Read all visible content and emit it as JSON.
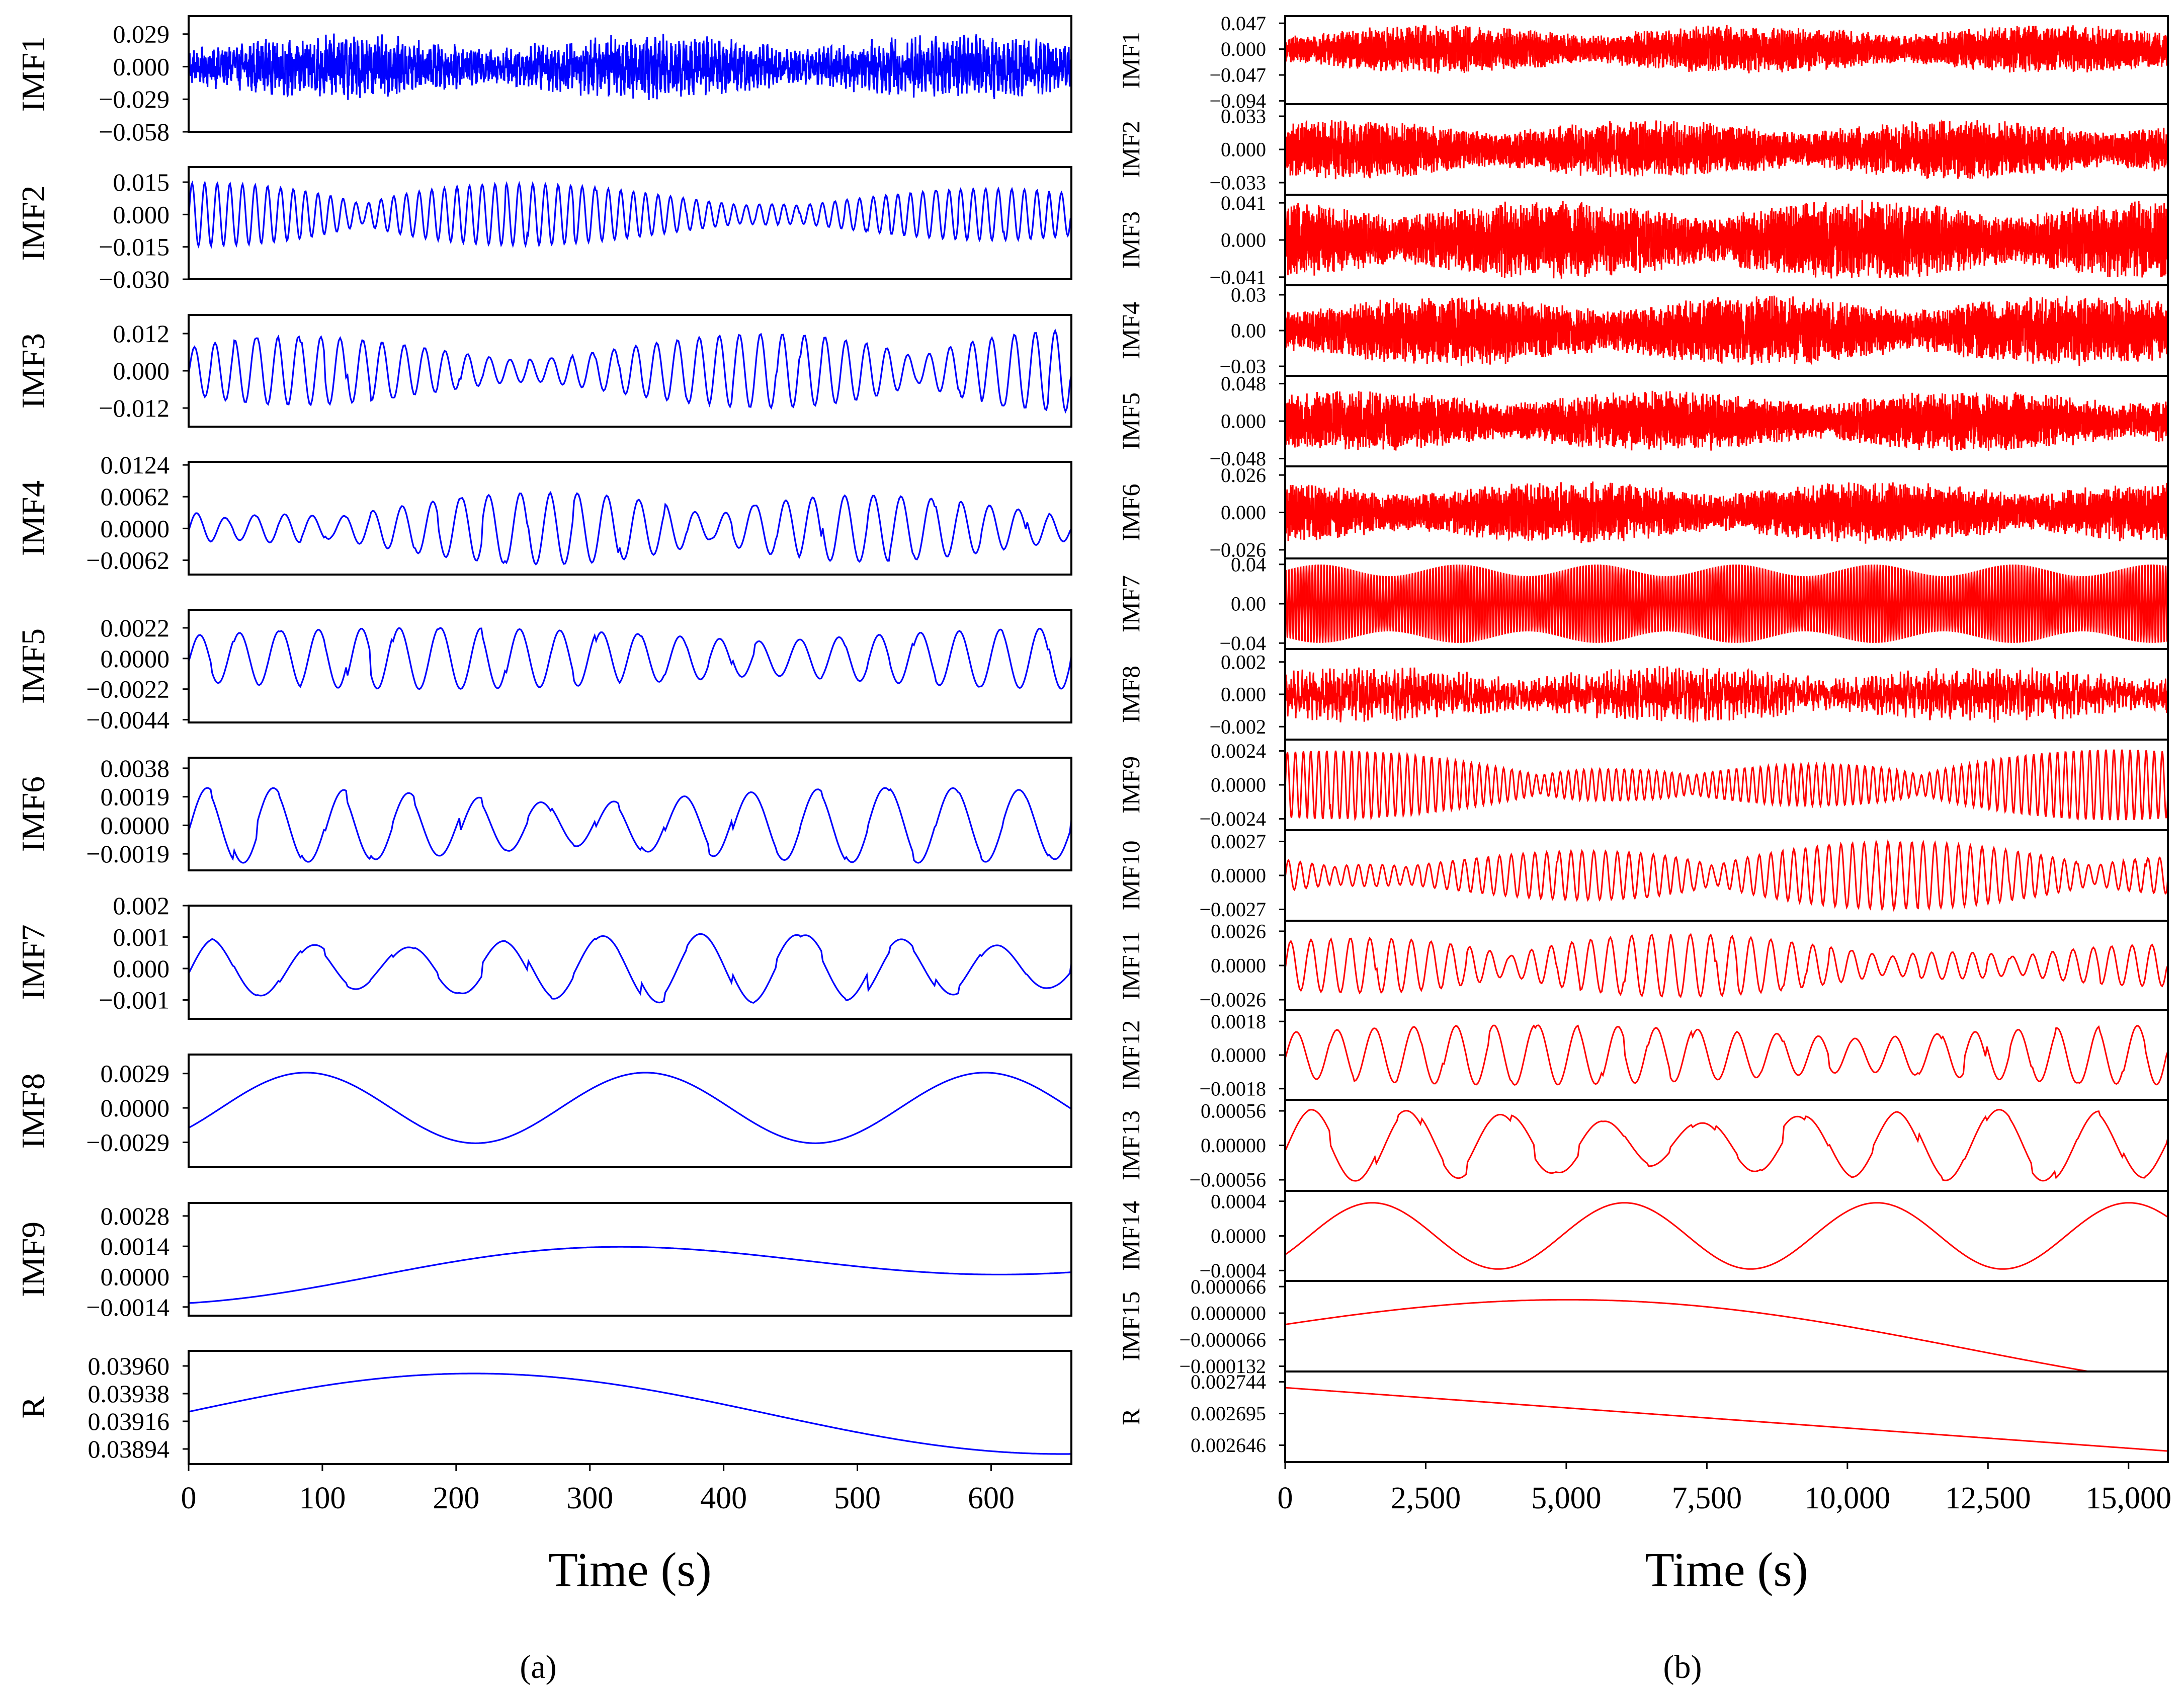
{
  "chart_data": [
    {
      "type": "line",
      "caption": "(a)",
      "caption_letter": "a",
      "color": "#0000ff",
      "xlabel": "Time (s)",
      "xlim": [
        0,
        660
      ],
      "xticks": [
        "0",
        "100",
        "200",
        "300",
        "400",
        "500",
        "600"
      ],
      "xtick_values": [
        0,
        100,
        200,
        300,
        400,
        500,
        600
      ],
      "panels": [
        {
          "label": "IMF1",
          "ylim": [
            -0.058,
            0.045
          ],
          "ticks": [
            0.029,
            0.0,
            -0.029,
            -0.058
          ],
          "tick_labels": [
            "0.029",
            "0.000",
            "−0.029",
            "−0.058"
          ],
          "amplitude": 0.03,
          "periods": 220,
          "style": "noise"
        },
        {
          "label": "IMF2",
          "ylim": [
            -0.03,
            0.022
          ],
          "ticks": [
            0.015,
            0.0,
            -0.015,
            -0.03
          ],
          "tick_labels": [
            "0.015",
            "0.000",
            "−0.015",
            "−0.030"
          ],
          "amplitude": 0.016,
          "periods": 70,
          "style": "burst"
        },
        {
          "label": "IMF3",
          "ylim": [
            -0.018,
            0.018
          ],
          "ticks": [
            0.012,
            0.0,
            -0.012
          ],
          "tick_labels": [
            "0.012",
            "0.000",
            "−0.012"
          ],
          "amplitude": 0.014,
          "periods": 42,
          "style": "burst"
        },
        {
          "label": "IMF4",
          "ylim": [
            -0.009,
            0.013
          ],
          "ticks": [
            0.0124,
            0.0062,
            0.0,
            -0.0062
          ],
          "tick_labels": [
            "0.0124",
            "0.0062",
            "0.0000",
            "−0.0062"
          ],
          "amplitude": 0.0075,
          "periods": 30,
          "style": "burst"
        },
        {
          "label": "IMF5",
          "ylim": [
            -0.0046,
            0.0035
          ],
          "ticks": [
            0.0022,
            0.0,
            -0.0022,
            -0.0044
          ],
          "tick_labels": [
            "0.0022",
            "0.0000",
            "−0.0022",
            "−0.0044"
          ],
          "amplitude": 0.0022,
          "periods": 22,
          "style": "wave"
        },
        {
          "label": "IMF6",
          "ylim": [
            -0.003,
            0.0045
          ],
          "ticks": [
            0.0038,
            0.0019,
            0.0,
            -0.0019
          ],
          "tick_labels": [
            "0.0038",
            "0.0019",
            "0.0000",
            "−0.0019"
          ],
          "amplitude": 0.0025,
          "periods": 13,
          "style": "wave"
        },
        {
          "label": "IMF7",
          "ylim": [
            -0.0016,
            0.002
          ],
          "ticks": [
            0.002,
            0.001,
            0.0,
            -0.001
          ],
          "tick_labels": [
            "0.002",
            "0.001",
            "0.000",
            "−0.001"
          ],
          "amplitude": 0.0011,
          "periods": 9,
          "style": "wave"
        },
        {
          "label": "IMF8",
          "ylim": [
            -0.005,
            0.0045
          ],
          "ticks": [
            0.0029,
            0.0,
            -0.0029
          ],
          "tick_labels": [
            "0.0029",
            "0.0000",
            "−0.0029"
          ],
          "amplitude": 0.0035,
          "periods": 2.6,
          "style": "slow"
        },
        {
          "label": "IMF9",
          "ylim": [
            -0.0018,
            0.0034
          ],
          "ticks": [
            0.0028,
            0.0014,
            0.0,
            -0.0014
          ],
          "tick_labels": [
            "0.0028",
            "0.0014",
            "0.0000",
            "−0.0014"
          ],
          "amplitude": 0.002,
          "periods": 1.1,
          "style": "trend"
        },
        {
          "label": "R",
          "ylim": [
            0.03882,
            0.03972
          ],
          "ticks": [
            0.0396,
            0.03938,
            0.03916,
            0.03894
          ],
          "tick_labels": [
            "0.03960",
            "0.03938",
            "0.03916",
            "0.03894"
          ],
          "amplitude": 0.0003,
          "periods": 0.8,
          "style": "residue"
        }
      ]
    },
    {
      "type": "line",
      "caption": "(b)",
      "caption_letter": "b",
      "color": "#ff0000",
      "xlabel": "Time (s)",
      "xlim": [
        0,
        15700
      ],
      "xticks": [
        "0",
        "2,500",
        "5,000",
        "7,500",
        "10,000",
        "12,500",
        "15,000"
      ],
      "xtick_values": [
        0,
        2500,
        5000,
        7500,
        10000,
        12500,
        15000
      ],
      "panels": [
        {
          "label": "IMF1",
          "ylim": [
            -0.1,
            0.06
          ],
          "ticks": [
            0.047,
            0.0,
            -0.047,
            -0.094
          ],
          "tick_labels": [
            "0.047",
            "0.000",
            "−0.047",
            "−0.094"
          ],
          "amplitude": 0.045,
          "periods": 900,
          "style": "noise"
        },
        {
          "label": "IMF2",
          "ylim": [
            -0.045,
            0.045
          ],
          "ticks": [
            0.033,
            0.0,
            -0.033
          ],
          "tick_labels": [
            "0.033",
            "0.000",
            "−0.033"
          ],
          "amplitude": 0.03,
          "periods": 800,
          "style": "noise"
        },
        {
          "label": "IMF3",
          "ylim": [
            -0.05,
            0.05
          ],
          "ticks": [
            0.041,
            0.0,
            -0.041
          ],
          "tick_labels": [
            "0.041",
            "0.000",
            "−0.041"
          ],
          "amplitude": 0.045,
          "periods": 900,
          "style": "noise"
        },
        {
          "label": "IMF4",
          "ylim": [
            -0.038,
            0.038
          ],
          "ticks": [
            0.03,
            0.0,
            -0.03
          ],
          "tick_labels": [
            "0.03",
            "0.00",
            "−0.03"
          ],
          "amplitude": 0.03,
          "periods": 800,
          "style": "noise"
        },
        {
          "label": "IMF5",
          "ylim": [
            -0.058,
            0.058
          ],
          "ticks": [
            0.048,
            0.0,
            -0.048
          ],
          "tick_labels": [
            "0.048",
            "0.000",
            "−0.048"
          ],
          "amplitude": 0.04,
          "periods": 700,
          "style": "noise"
        },
        {
          "label": "IMF6",
          "ylim": [
            -0.032,
            0.032
          ],
          "ticks": [
            0.026,
            0.0,
            -0.026
          ],
          "tick_labels": [
            "0.026",
            "0.000",
            "−0.026"
          ],
          "amplitude": 0.022,
          "periods": 500,
          "style": "noise"
        },
        {
          "label": "IMF7",
          "ylim": [
            -0.046,
            0.046
          ],
          "ticks": [
            0.04,
            0.0,
            -0.04
          ],
          "tick_labels": [
            "0.04",
            "0.00",
            "−0.04"
          ],
          "amplitude": 0.04,
          "periods": 300,
          "style": "dense"
        },
        {
          "label": "IMF8",
          "ylim": [
            -0.0028,
            0.0028
          ],
          "ticks": [
            0.002,
            0.0,
            -0.002
          ],
          "tick_labels": [
            "0.002",
            "0.000",
            "−0.002"
          ],
          "amplitude": 0.0018,
          "periods": 220,
          "style": "noise"
        },
        {
          "label": "IMF9",
          "ylim": [
            -0.0032,
            0.0032
          ],
          "ticks": [
            0.0024,
            0.0,
            -0.0024
          ],
          "tick_labels": [
            "0.0024",
            "0.0000",
            "−0.0024"
          ],
          "amplitude": 0.0025,
          "periods": 110,
          "style": "burst"
        },
        {
          "label": "IMF10",
          "ylim": [
            -0.0036,
            0.0036
          ],
          "ticks": [
            0.0027,
            0.0,
            -0.0027
          ],
          "tick_labels": [
            "0.0027",
            "0.0000",
            "−0.0027"
          ],
          "amplitude": 0.0027,
          "periods": 75,
          "style": "burst"
        },
        {
          "label": "IMF11",
          "ylim": [
            -0.0034,
            0.0034
          ],
          "ticks": [
            0.0026,
            0.0,
            -0.0026
          ],
          "tick_labels": [
            "0.0026",
            "0.0000",
            "−0.0026"
          ],
          "amplitude": 0.0025,
          "periods": 44,
          "style": "burst"
        },
        {
          "label": "IMF12",
          "ylim": [
            -0.0024,
            0.0024
          ],
          "ticks": [
            0.0018,
            0.0,
            -0.0018
          ],
          "tick_labels": [
            "0.0018",
            "0.0000",
            "−0.0018"
          ],
          "amplitude": 0.0016,
          "periods": 22,
          "style": "wave"
        },
        {
          "label": "IMF13",
          "ylim": [
            -0.00074,
            0.00074
          ],
          "ticks": [
            0.00056,
            0.0,
            -0.00056
          ],
          "tick_labels": [
            "0.00056",
            "0.00000",
            "−0.00056"
          ],
          "amplitude": 0.00058,
          "periods": 9,
          "style": "wave"
        },
        {
          "label": "IMF14",
          "ylim": [
            -0.00052,
            0.00052
          ],
          "ticks": [
            0.0004,
            0.0,
            -0.0004
          ],
          "tick_labels": [
            "0.0004",
            "0.0000",
            "−0.0004"
          ],
          "amplitude": 0.00045,
          "periods": 3.5,
          "style": "slow"
        },
        {
          "label": "IMF15",
          "ylim": [
            -0.000145,
            8e-05
          ],
          "ticks": [
            6.6e-05,
            0.0,
            -6.6e-05,
            -0.000132
          ],
          "tick_labels": [
            "0.000066",
            "0.000000",
            "−0.000066",
            "−0.000132"
          ],
          "amplitude": 9e-05,
          "periods": 0.9,
          "style": "residue15"
        },
        {
          "label": "R",
          "ylim": [
            0.00262,
            0.00276
          ],
          "ticks": [
            0.002744,
            0.002695,
            0.002646
          ],
          "tick_labels": [
            "0.002744",
            "0.002695",
            "0.002646"
          ],
          "amplitude": 0.0001,
          "periods": 1,
          "style": "linear"
        }
      ]
    }
  ]
}
